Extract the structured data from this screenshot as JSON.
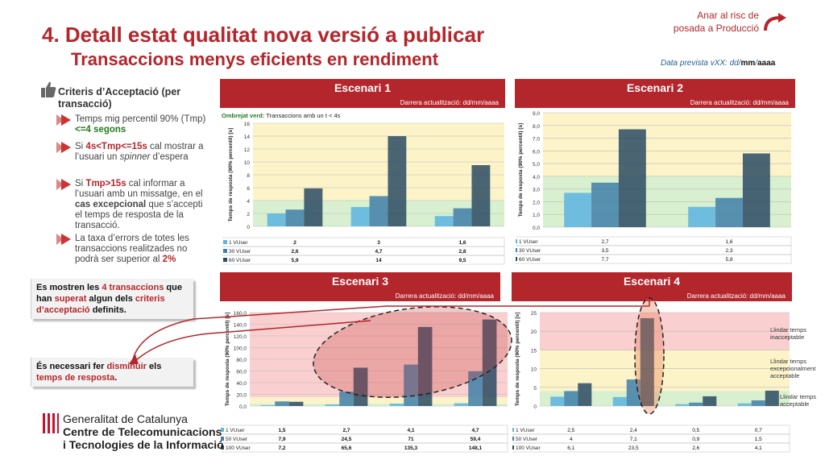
{
  "header": {
    "title": "4. Detall estat qualitat nova versió a publicar",
    "subtitle": "Transaccions menys eficients en rendiment",
    "risk_link_line1": "Anar al risc de",
    "risk_link_line2": "posada a Producció",
    "date_prefix": "Data prevista vXX: dd/",
    "date_mm": "mm",
    "date_sep": "/",
    "date_yyyy": "aaaa"
  },
  "criteria": {
    "heading": "Criteris d’Acceptació (per transacció)",
    "b1_text": "Temps mig percentil 90% (Tmp) ",
    "b1_hl": "<=4 segons",
    "b2_pre": "Si ",
    "b2_hl": "4s<Tmp<=15s",
    "b2_mid": " cal mostrar a l’usuari un ",
    "b2_em": "spinner",
    "b2_post": " d’espera",
    "b3_pre": "Si ",
    "b3_hl": "Tmp>15s",
    "b3_mid": " cal informar a l’usuari amb un missatge, en el ",
    "b3_hl2": "cas excepcional",
    "b3_post": " que s’accepti el temps de resposta de la transacció.",
    "b4_text": "La taxa d’errors de totes les transaccions realitzades no podrà ser superior al ",
    "b4_hl": "2%"
  },
  "callouts": {
    "c1_a": "Es mostren les ",
    "c1_b": "4 transaccions",
    "c1_c": " que han ",
    "c1_d": "superat",
    "c1_e": " algun dels ",
    "c1_f": "criteris d’acceptació",
    "c1_g": " definits.",
    "c2_a": "És necessari fer ",
    "c2_b": "disminuir",
    "c2_c": " els ",
    "c2_d": "temps de resposta",
    "c2_e": "."
  },
  "panels": {
    "p1_title": "Escenari 1",
    "p2_title": "Escenari 2",
    "p3_title": "Escenari 3",
    "p4_title": "Escenari 4",
    "updated": "Darrera actualització: dd/mm/aaaa"
  },
  "ombrejat_label": "Ombrejat verd:",
  "ombrejat_text": " Transaccions amb un t < 4s",
  "thresholds": {
    "t1": "Llindar temps inacceptable",
    "t2": "Llindar temps excepcionalment acceptable",
    "t3": "Llindar temps acceptable"
  },
  "logo": {
    "line1": "Generalitat de Catalunya",
    "line2": "Centre de Telecomunicacions",
    "line3": "i Tecnologies de la Informació"
  },
  "colors": {
    "brand_red": "#b3262c",
    "s1": "#5db4e0",
    "s2": "#3f7fa8",
    "s3": "#2b4a63"
  },
  "chart_data": [
    {
      "type": "bar",
      "title": "Escenari 1",
      "ylabel": "Temps de resposta (90% percentil) [s]",
      "ylim": [
        0,
        16
      ],
      "yticks": [
        0,
        2,
        4,
        6,
        8,
        10,
        12,
        14,
        16
      ],
      "yfmt": 0,
      "categories": [
        "",
        "",
        ""
      ],
      "series": [
        {
          "name": "1 VUser",
          "values": [
            2,
            3,
            1.6
          ],
          "labels": [
            "2",
            "3",
            "1,6"
          ]
        },
        {
          "name": "30 VUser",
          "values": [
            2.6,
            4.7,
            2.8
          ],
          "labels": [
            "2,6",
            "4,7",
            "2,8"
          ]
        },
        {
          "name": "60 VUser",
          "values": [
            5.9,
            14,
            9.5
          ],
          "labels": [
            "5,9",
            "14",
            "9,5"
          ]
        }
      ]
    },
    {
      "type": "bar",
      "title": "Escenari 2",
      "ylabel": "Temps de resposta (90% percentil) [s]",
      "ylim": [
        0,
        9
      ],
      "yticks": [
        0,
        1,
        2,
        3,
        4,
        5,
        6,
        7,
        8,
        9
      ],
      "yfmt": 1,
      "categories": [
        "",
        ""
      ],
      "series": [
        {
          "name": "1 VUser",
          "values": [
            2.7,
            1.6
          ],
          "labels": [
            "2,7",
            "1,6"
          ]
        },
        {
          "name": "30 VUser",
          "values": [
            3.5,
            2.3
          ],
          "labels": [
            "3,5",
            "2,3"
          ]
        },
        {
          "name": "60 VUser",
          "values": [
            7.7,
            5.8
          ],
          "labels": [
            "7,7",
            "5,8"
          ]
        }
      ]
    },
    {
      "type": "bar",
      "title": "Escenari 3",
      "ylabel": "Temps de resposta (90% percentil) [s]",
      "ylim": [
        0,
        160
      ],
      "yticks": [
        0,
        20,
        40,
        60,
        80,
        100,
        120,
        140,
        160
      ],
      "yfmt": 1,
      "categories": [
        "",
        "",
        "",
        ""
      ],
      "series": [
        {
          "name": "1 VUser",
          "values": [
            1.5,
            2.7,
            4.1,
            4.7
          ],
          "labels": [
            "1,5",
            "2,7",
            "4,1",
            "4,7"
          ]
        },
        {
          "name": "50 VUser",
          "values": [
            7.9,
            24.5,
            71,
            59.4
          ],
          "labels": [
            "7,9",
            "24,5",
            "71",
            "59,4"
          ]
        },
        {
          "name": "100 VUser",
          "values": [
            7.2,
            65.6,
            135.3,
            148.1
          ],
          "labels": [
            "7,2",
            "65,6",
            "135,3",
            "148,1"
          ]
        }
      ]
    },
    {
      "type": "bar",
      "title": "Escenari 4",
      "ylabel": "Temps de resposta (90% percentil) [s]",
      "ylim": [
        0,
        25
      ],
      "yticks": [
        0,
        5,
        10,
        15,
        20,
        25
      ],
      "yfmt": 0,
      "categories": [
        "",
        "",
        "",
        ""
      ],
      "series": [
        {
          "name": "1 VUser",
          "values": [
            2.5,
            2.4,
            0.5,
            0.7
          ],
          "labels": [
            "2,5",
            "2,4",
            "0,5",
            "0,7"
          ]
        },
        {
          "name": "50 VUser",
          "values": [
            4,
            7.1,
            0.9,
            1.5
          ],
          "labels": [
            "4",
            "7,1",
            "0,9",
            "1,5"
          ]
        },
        {
          "name": "100 VUser",
          "values": [
            6.1,
            23.5,
            2.6,
            4.1
          ],
          "labels": [
            "6,1",
            "23,5",
            "2,6",
            "4,1"
          ]
        }
      ]
    }
  ]
}
